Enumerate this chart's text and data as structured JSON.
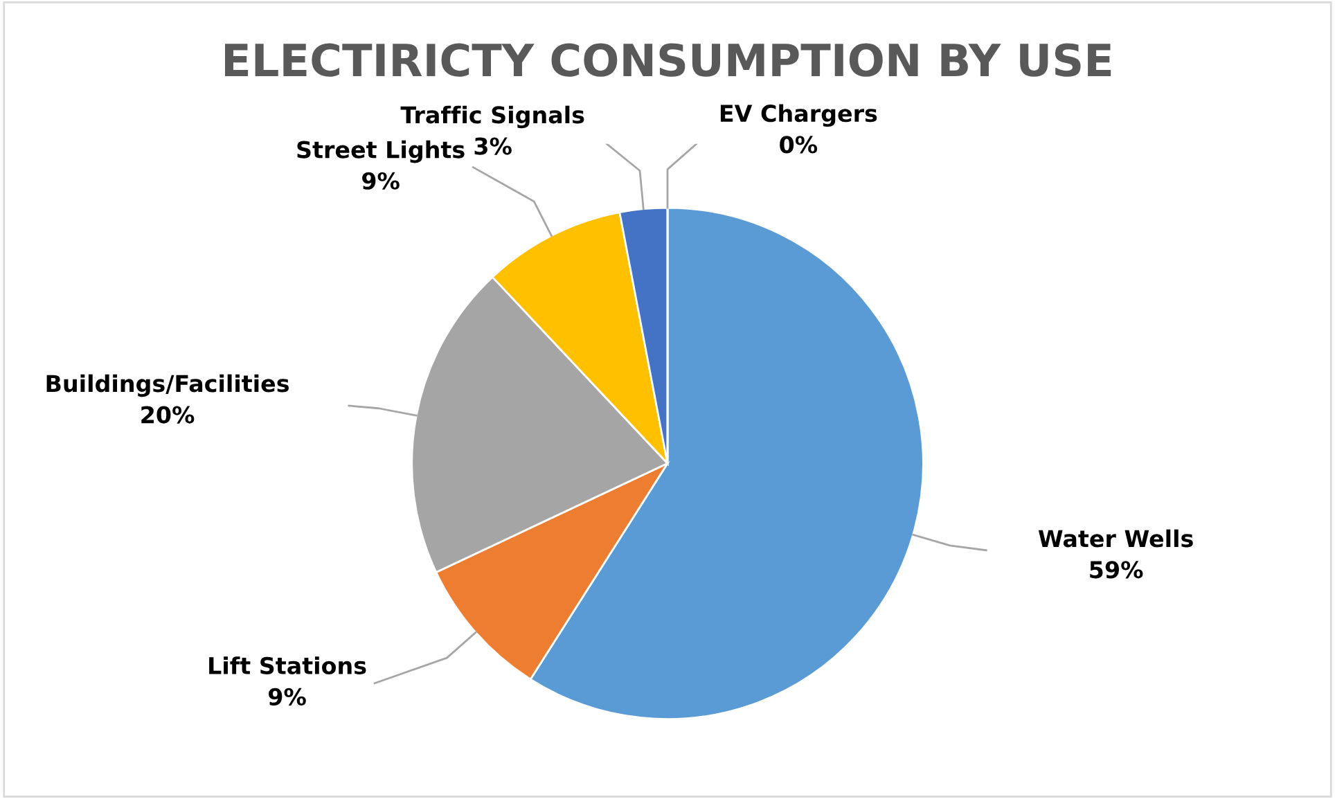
{
  "chart_data": {
    "type": "pie",
    "title": "ELECTIRICTY CONSUMPTION BY USE",
    "categories": [
      "Water Wells",
      "Lift Stations",
      "Buildings/Facilities",
      "Street Lights",
      "Traffic Signals",
      "EV Chargers"
    ],
    "values": [
      59,
      9,
      20,
      9,
      3,
      0
    ],
    "colors": [
      "#5b9bd5",
      "#ed7d31",
      "#a5a5a5",
      "#ffc000",
      "#4472c4",
      "#70ad47"
    ],
    "value_labels": [
      "59%",
      "9%",
      "20%",
      "9%",
      "3%",
      "0%"
    ]
  }
}
